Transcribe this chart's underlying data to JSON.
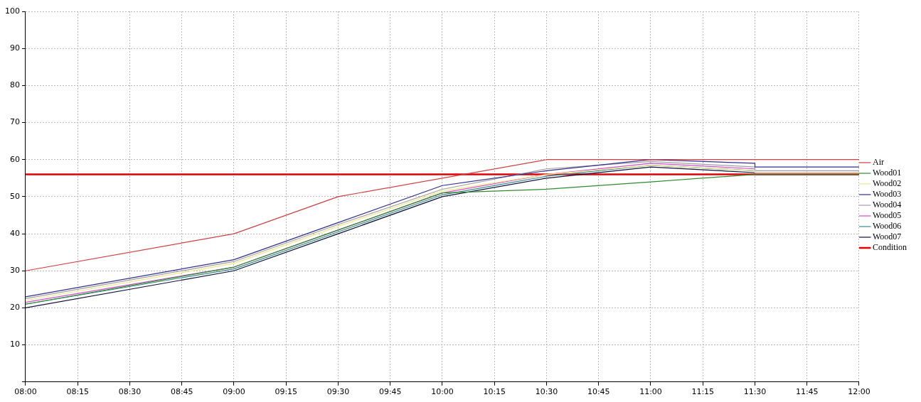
{
  "chart_data": {
    "type": "line",
    "x": [
      8,
      9,
      9.5,
      10,
      10.5,
      11,
      11.5,
      11.5,
      12
    ],
    "series": [
      {
        "name": "Air",
        "color": "#d04040",
        "values": [
          30,
          40,
          50,
          55,
          60,
          60,
          60,
          60,
          60
        ]
      },
      {
        "name": "Wood01",
        "color": "#2e8b2e",
        "values": [
          21,
          31,
          41,
          51,
          52,
          54,
          56,
          56,
          56
        ]
      },
      {
        "name": "Wood02",
        "color": "#f0e68c",
        "values": [
          22,
          32,
          42,
          51.5,
          56,
          58.5,
          57,
          56.5,
          56.5
        ]
      },
      {
        "name": "Wood03",
        "color": "#303090",
        "values": [
          23,
          33,
          43,
          53,
          57,
          60,
          59,
          58,
          58
        ]
      },
      {
        "name": "Wood04",
        "color": "#a0a0a0",
        "values": [
          22.5,
          32.5,
          42.5,
          52,
          57.5,
          59.5,
          58,
          57,
          57
        ]
      },
      {
        "name": "Wood05",
        "color": "#d050d0",
        "values": [
          21.5,
          31,
          41,
          51,
          56,
          59,
          57.5,
          56.5,
          56.5
        ]
      },
      {
        "name": "Wood06",
        "color": "#3a8a8a",
        "values": [
          21,
          30.5,
          40.5,
          50.5,
          55.5,
          58.5,
          57,
          56,
          56
        ]
      },
      {
        "name": "Wood07",
        "color": "#101040",
        "values": [
          20,
          30,
          40,
          50,
          55,
          58,
          56.5,
          56,
          56
        ]
      },
      {
        "name": "Condition",
        "color": "#e00000",
        "x": [
          8,
          12
        ],
        "values": [
          56,
          56
        ]
      }
    ],
    "xlim": [
      8,
      12
    ],
    "xticks": [
      {
        "value": 8,
        "label": "08:00"
      },
      {
        "value": 8.25,
        "label": "08:15"
      },
      {
        "value": 8.5,
        "label": "08:30"
      },
      {
        "value": 8.75,
        "label": "08:45"
      },
      {
        "value": 9,
        "label": "09:00"
      },
      {
        "value": 9.25,
        "label": "09:15"
      },
      {
        "value": 9.5,
        "label": "09:30"
      },
      {
        "value": 9.75,
        "label": "09:45"
      },
      {
        "value": 10,
        "label": "10:00"
      },
      {
        "value": 10.25,
        "label": "10:15"
      },
      {
        "value": 10.5,
        "label": "10:30"
      },
      {
        "value": 10.75,
        "label": "10:45"
      },
      {
        "value": 11,
        "label": "11:00"
      },
      {
        "value": 11.25,
        "label": "11:15"
      },
      {
        "value": 11.5,
        "label": "11:30"
      },
      {
        "value": 11.75,
        "label": "11:45"
      },
      {
        "value": 12,
        "label": "12:00"
      }
    ],
    "ylim": [
      0,
      100
    ],
    "yticks": [
      {
        "value": 0,
        "label": null
      },
      10,
      20,
      30,
      40,
      50,
      60,
      70,
      80,
      90,
      100
    ],
    "grid": true,
    "legend": "right",
    "marker": "none",
    "line_style": "solid"
  }
}
